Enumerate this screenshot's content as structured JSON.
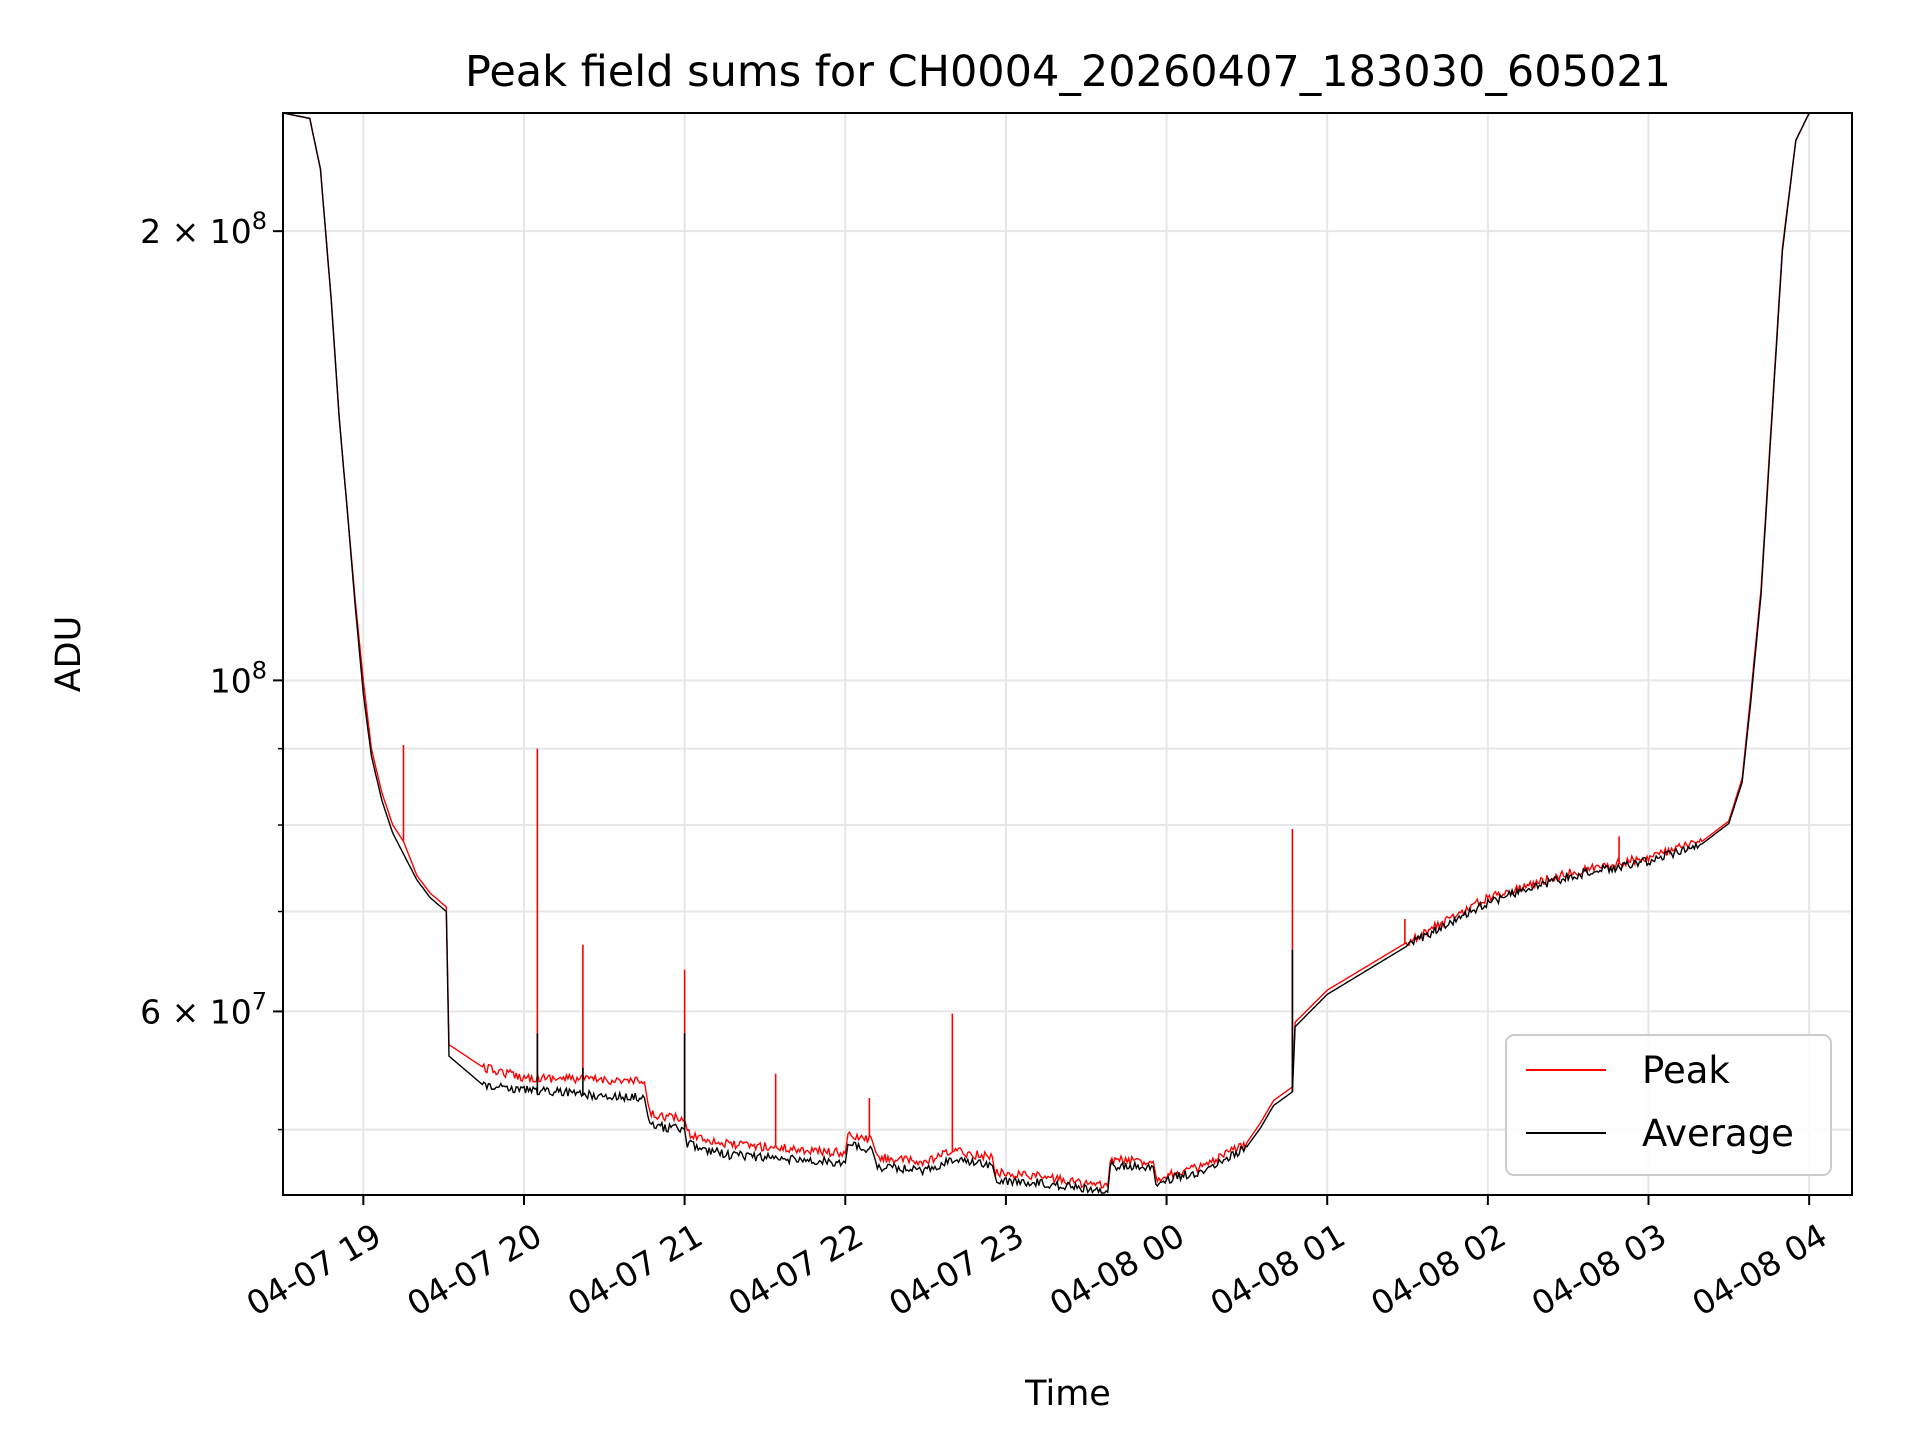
{
  "chart_data": {
    "type": "line",
    "title": "Peak field sums for CH0004_20260407_183030_605021",
    "xlabel": "Time",
    "ylabel": "ADU",
    "yscale": "log",
    "grid": true,
    "legend_position": "lower-right",
    "x_range": [
      "2026-04-07 18:30",
      "2026-04-08 04:16"
    ],
    "ylim": [
      45200000,
      240000000
    ],
    "x_ticks": [
      "04-07 19",
      "04-07 20",
      "04-07 21",
      "04-07 22",
      "04-07 23",
      "04-08 00",
      "04-08 01",
      "04-08 02",
      "04-08 03",
      "04-08 04"
    ],
    "y_ticks": [
      {
        "value": 60000000,
        "label": "6 × 10^7",
        "mantissa": "6",
        "exponent": "7"
      },
      {
        "value": 100000000,
        "label": "10^8",
        "mantissa": "",
        "exponent": "8"
      },
      {
        "value": 200000000,
        "label": "2 × 10^8",
        "mantissa": "2",
        "exponent": "8"
      }
    ],
    "series": [
      {
        "name": "Peak",
        "color": "#ff0000",
        "points": [
          [
            "2026-04-07 18:30",
            240000000
          ],
          [
            "2026-04-07 18:40",
            238000000
          ],
          [
            "2026-04-07 18:44",
            220000000
          ],
          [
            "2026-04-07 18:48",
            180000000
          ],
          [
            "2026-04-07 18:51",
            150000000
          ],
          [
            "2026-04-07 18:54",
            130000000
          ],
          [
            "2026-04-07 18:57",
            113000000
          ],
          [
            "2026-04-07 19:00",
            100000000
          ],
          [
            "2026-04-07 19:03",
            90000000
          ],
          [
            "2026-04-07 19:07",
            84000000
          ],
          [
            "2026-04-07 19:11",
            80000000
          ],
          [
            "2026-04-07 19:15",
            78000000
          ],
          [
            "2026-04-07 19:20",
            74000000
          ],
          [
            "2026-04-07 19:25",
            72000000
          ],
          [
            "2026-04-07 19:31",
            70500000
          ],
          [
            "2026-04-07 19:32",
            57000000
          ],
          [
            "2026-04-07 19:45",
            55000000
          ],
          [
            "2026-04-07 20:00",
            54200000
          ],
          [
            "2026-04-07 20:30",
            54000000
          ],
          [
            "2026-04-07 20:45",
            53800000
          ],
          [
            "2026-04-07 20:47",
            51200000
          ],
          [
            "2026-04-07 21:00",
            50800000
          ],
          [
            "2026-04-07 21:01",
            49700000
          ],
          [
            "2026-04-07 21:15",
            48900000
          ],
          [
            "2026-04-07 21:30",
            48700000
          ],
          [
            "2026-04-07 22:00",
            48200000
          ],
          [
            "2026-04-07 22:01",
            49500000
          ],
          [
            "2026-04-07 22:10",
            49200000
          ],
          [
            "2026-04-07 22:12",
            47900000
          ],
          [
            "2026-04-07 22:30",
            47500000
          ],
          [
            "2026-04-07 22:40",
            48400000
          ],
          [
            "2026-04-07 22:55",
            47900000
          ],
          [
            "2026-04-07 22:56",
            46800000
          ],
          [
            "2026-04-07 23:10",
            46600000
          ],
          [
            "2026-04-07 23:30",
            46000000
          ],
          [
            "2026-04-07 23:38",
            45800000
          ],
          [
            "2026-04-07 23:39",
            47700000
          ],
          [
            "2026-04-07 23:55",
            47600000
          ],
          [
            "2026-04-07 23:56",
            46400000
          ],
          [
            "2026-04-08 00:15",
            47300000
          ],
          [
            "2026-04-08 00:30",
            49000000
          ],
          [
            "2026-04-08 00:35",
            50500000
          ],
          [
            "2026-04-08 00:40",
            52300000
          ],
          [
            "2026-04-08 00:47",
            53400000
          ],
          [
            "2026-04-08 00:48",
            59000000
          ],
          [
            "2026-04-08 01:00",
            62000000
          ],
          [
            "2026-04-08 01:30",
            66800000
          ],
          [
            "2026-04-08 02:00",
            71500000
          ],
          [
            "2026-04-08 02:30",
            74300000
          ],
          [
            "2026-04-08 03:00",
            76100000
          ],
          [
            "2026-04-08 03:20",
            78000000
          ],
          [
            "2026-04-08 03:30",
            80500000
          ],
          [
            "2026-04-08 03:35",
            86000000
          ],
          [
            "2026-04-08 03:38",
            97000000
          ],
          [
            "2026-04-08 03:42",
            115000000
          ],
          [
            "2026-04-08 03:46",
            150000000
          ],
          [
            "2026-04-08 03:50",
            195000000
          ],
          [
            "2026-04-08 03:55",
            230000000
          ],
          [
            "2026-04-08 04:00",
            240000000
          ],
          [
            "2026-04-08 04:16",
            240000000
          ]
        ],
        "spikes": [
          [
            "2026-04-07 19:15",
            90500000
          ],
          [
            "2026-04-07 20:05",
            90000000
          ],
          [
            "2026-04-07 20:22",
            66500000
          ],
          [
            "2026-04-07 21:00",
            64000000
          ],
          [
            "2026-04-07 21:34",
            54500000
          ],
          [
            "2026-04-07 22:09",
            52500000
          ],
          [
            "2026-04-07 22:40",
            59800000
          ],
          [
            "2026-04-08 00:47",
            79500000
          ],
          [
            "2026-04-08 01:29",
            69200000
          ],
          [
            "2026-04-08 02:49",
            78600000
          ]
        ]
      },
      {
        "name": "Average",
        "color": "#000000",
        "points": [
          [
            "2026-04-07 18:30",
            240000000
          ],
          [
            "2026-04-07 18:40",
            238000000
          ],
          [
            "2026-04-07 18:44",
            220000000
          ],
          [
            "2026-04-07 18:48",
            180000000
          ],
          [
            "2026-04-07 18:51",
            150000000
          ],
          [
            "2026-04-07 18:54",
            130000000
          ],
          [
            "2026-04-07 18:57",
            112000000
          ],
          [
            "2026-04-07 19:00",
            98000000
          ],
          [
            "2026-04-07 19:03",
            89000000
          ],
          [
            "2026-04-07 19:07",
            83000000
          ],
          [
            "2026-04-07 19:11",
            79000000
          ],
          [
            "2026-04-07 19:15",
            76500000
          ],
          [
            "2026-04-07 19:20",
            73500000
          ],
          [
            "2026-04-07 19:25",
            71500000
          ],
          [
            "2026-04-07 19:31",
            70000000
          ],
          [
            "2026-04-07 19:32",
            56000000
          ],
          [
            "2026-04-07 19:45",
            53500000
          ],
          [
            "2026-04-07 20:00",
            53200000
          ],
          [
            "2026-04-07 20:30",
            52700000
          ],
          [
            "2026-04-07 20:45",
            52500000
          ],
          [
            "2026-04-07 20:47",
            50300000
          ],
          [
            "2026-04-07 21:00",
            50000000
          ],
          [
            "2026-04-07 21:01",
            48900000
          ],
          [
            "2026-04-07 21:15",
            48100000
          ],
          [
            "2026-04-07 21:30",
            47900000
          ],
          [
            "2026-04-07 22:00",
            47500000
          ],
          [
            "2026-04-07 22:01",
            48800000
          ],
          [
            "2026-04-07 22:10",
            48500000
          ],
          [
            "2026-04-07 22:12",
            47200000
          ],
          [
            "2026-04-07 22:30",
            46900000
          ],
          [
            "2026-04-07 22:40",
            47700000
          ],
          [
            "2026-04-07 22:55",
            47300000
          ],
          [
            "2026-04-07 22:56",
            46300000
          ],
          [
            "2026-04-07 23:10",
            46100000
          ],
          [
            "2026-04-07 23:30",
            45600000
          ],
          [
            "2026-04-07 23:38",
            45400000
          ],
          [
            "2026-04-07 23:39",
            47300000
          ],
          [
            "2026-04-07 23:55",
            47200000
          ],
          [
            "2026-04-07 23:56",
            46100000
          ],
          [
            "2026-04-08 00:15",
            47000000
          ],
          [
            "2026-04-08 00:30",
            48700000
          ],
          [
            "2026-04-08 00:35",
            50100000
          ],
          [
            "2026-04-08 00:40",
            51900000
          ],
          [
            "2026-04-08 00:47",
            53000000
          ],
          [
            "2026-04-08 00:48",
            58600000
          ],
          [
            "2026-04-08 01:00",
            61600000
          ],
          [
            "2026-04-08 01:30",
            66400000
          ],
          [
            "2026-04-08 02:00",
            71000000
          ],
          [
            "2026-04-08 02:30",
            73900000
          ],
          [
            "2026-04-08 03:00",
            75700000
          ],
          [
            "2026-04-08 03:20",
            77700000
          ],
          [
            "2026-04-08 03:30",
            80200000
          ],
          [
            "2026-04-08 03:35",
            85500000
          ],
          [
            "2026-04-08 03:38",
            96000000
          ],
          [
            "2026-04-08 03:42",
            114000000
          ],
          [
            "2026-04-08 03:46",
            149000000
          ],
          [
            "2026-04-08 03:50",
            194000000
          ],
          [
            "2026-04-08 03:55",
            230000000
          ],
          [
            "2026-04-08 04:00",
            240000000
          ],
          [
            "2026-04-08 04:16",
            240000000
          ]
        ],
        "spikes": [
          [
            "2026-04-07 20:05",
            58000000
          ],
          [
            "2026-04-07 20:22",
            55000000
          ],
          [
            "2026-04-07 21:00",
            58000000
          ],
          [
            "2026-04-08 00:47",
            66000000
          ]
        ]
      }
    ]
  }
}
